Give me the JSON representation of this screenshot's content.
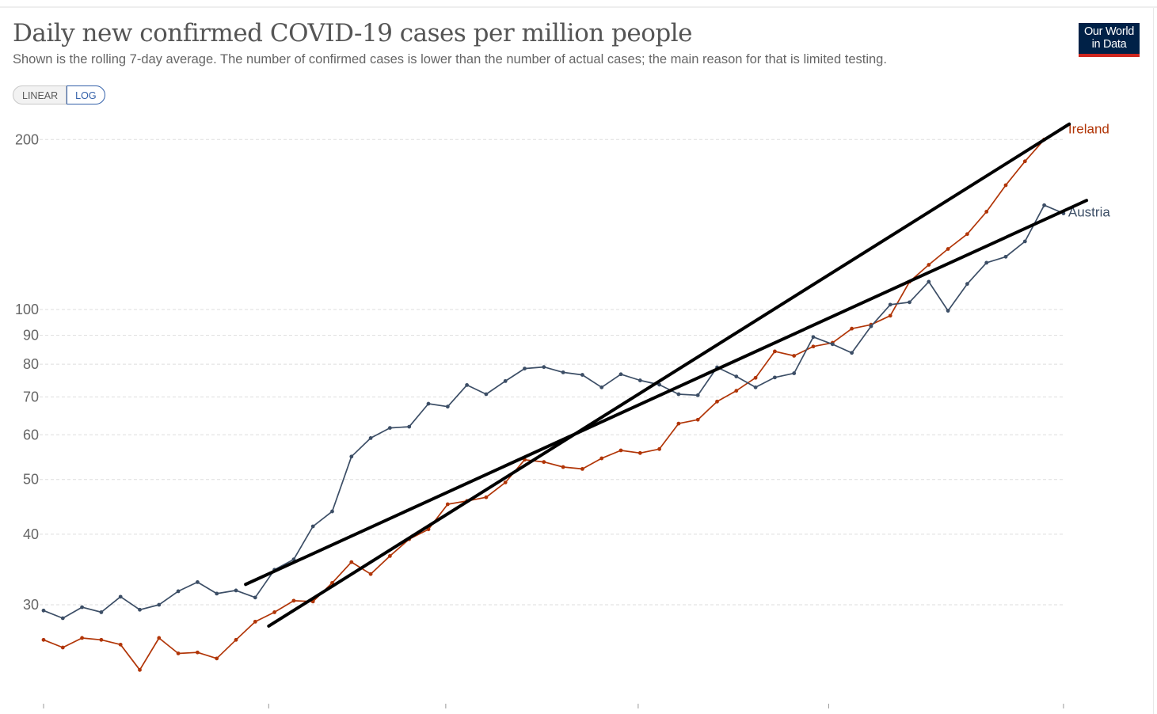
{
  "header": {
    "title": "Daily new confirmed COVID-19 cases per million people",
    "subtitle": "Shown is the rolling 7-day average. The number of confirmed cases is lower than the number of actual cases; the main reason for that is limited testing."
  },
  "logo": {
    "line1": "Our World",
    "line2": "in Data"
  },
  "scale_toggle": {
    "linear_label": "LINEAR",
    "log_label": "LOG",
    "selected": "LOG"
  },
  "colors": {
    "ireland": "#b13507",
    "austria": "#3c4e66",
    "annotation": "#000000",
    "logo_bg": "#002147",
    "logo_accent": "#ce261e"
  },
  "chart_data": {
    "type": "line",
    "title": "Daily new confirmed COVID-19 cases per million people",
    "ylabel": "",
    "yscale": "log",
    "ylim": [
      22.5,
      215
    ],
    "y_ticks": [
      30,
      40,
      50,
      60,
      70,
      80,
      90,
      100,
      200
    ],
    "x_index_range": [
      0,
      53
    ],
    "grid": "horizontal dashed",
    "legend": "inline line-end labels",
    "series": [
      {
        "name": "Ireland",
        "color": "#b13507",
        "values": [
          26.0,
          25.2,
          26.2,
          26.0,
          25.5,
          23.0,
          26.2,
          24.6,
          24.7,
          24.1,
          26.0,
          28.0,
          29.1,
          30.5,
          30.4,
          32.8,
          35.7,
          34.0,
          36.6,
          39.2,
          40.8,
          45.2,
          45.8,
          46.5,
          49.4,
          54.2,
          53.7,
          52.6,
          52.2,
          54.5,
          56.3,
          55.7,
          56.6,
          62.8,
          63.8,
          68.7,
          71.8,
          75.7,
          84.3,
          82.8,
          86.0,
          87.3,
          92.5,
          94.0,
          97.5,
          112,
          120,
          128,
          136,
          149,
          166,
          183,
          200
        ]
      },
      {
        "name": "Austria",
        "color": "#3c4e66",
        "values": [
          29.3,
          28.4,
          29.7,
          29.1,
          31.0,
          29.4,
          30.0,
          31.7,
          32.9,
          31.4,
          31.8,
          30.9,
          34.6,
          36.1,
          41.3,
          43.9,
          54.9,
          59.2,
          61.7,
          62.0,
          68.1,
          67.3,
          73.5,
          70.8,
          74.7,
          78.6,
          79.1,
          77.4,
          76.6,
          72.8,
          76.8,
          74.9,
          73.6,
          70.8,
          70.5,
          79.0,
          76.1,
          72.8,
          75.8,
          77.1,
          89.4,
          86.8,
          83.8,
          93.4,
          102,
          103,
          112,
          99.5,
          111,
          121,
          124,
          132,
          153,
          148
        ]
      }
    ],
    "annotations": [
      {
        "type": "trend-line",
        "from": {
          "x": 10.5,
          "y": 32.6
        },
        "to": {
          "x": 54.2,
          "y": 156
        }
      },
      {
        "type": "trend-line",
        "from": {
          "x": 11.7,
          "y": 27.5
        },
        "to": {
          "x": 53.3,
          "y": 213
        }
      }
    ]
  }
}
